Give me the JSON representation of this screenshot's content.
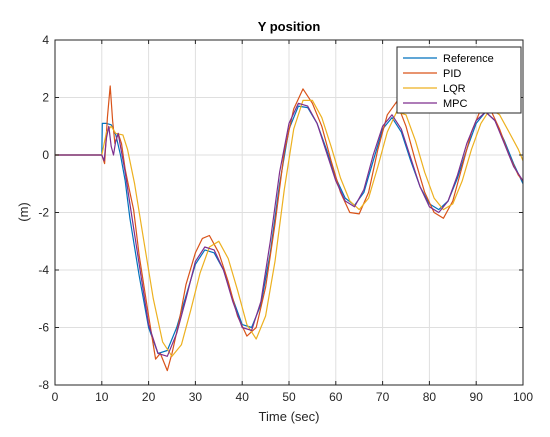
{
  "chart_data": {
    "type": "line",
    "title": "Y position",
    "xlabel": "Time (sec)",
    "ylabel": "(m)",
    "xlim": [
      0,
      100
    ],
    "ylim": [
      -8,
      4
    ],
    "xticks": [
      0,
      10,
      20,
      30,
      40,
      50,
      60,
      70,
      80,
      90,
      100
    ],
    "yticks": [
      -8,
      -6,
      -4,
      -2,
      0,
      2,
      4
    ],
    "x_tick_labels": [
      "0",
      "10",
      "20",
      "30",
      "40",
      "50",
      "60",
      "70",
      "80",
      "90",
      "100"
    ],
    "y_tick_labels": [
      "-8",
      "-6",
      "-4",
      "-2",
      "0",
      "2",
      "4"
    ],
    "grid": true,
    "legend_position": "top-right",
    "series": [
      {
        "name": "Reference",
        "color": "#0072BD",
        "points": [
          [
            0,
            0
          ],
          [
            10,
            0
          ],
          [
            10.1,
            1.1
          ],
          [
            11,
            1.1
          ],
          [
            12,
            1.05
          ],
          [
            13,
            0.7
          ],
          [
            14,
            0
          ],
          [
            15,
            -0.9
          ],
          [
            16,
            -2.2
          ],
          [
            18,
            -4.2
          ],
          [
            20,
            -6.0
          ],
          [
            22,
            -6.9
          ],
          [
            24,
            -6.8
          ],
          [
            26,
            -6.0
          ],
          [
            28,
            -4.9
          ],
          [
            30,
            -3.8
          ],
          [
            32,
            -3.3
          ],
          [
            34,
            -3.4
          ],
          [
            36,
            -4.0
          ],
          [
            38,
            -5.0
          ],
          [
            40,
            -5.9
          ],
          [
            42,
            -6.0
          ],
          [
            44,
            -5.2
          ],
          [
            46,
            -3.4
          ],
          [
            48,
            -1.0
          ],
          [
            50,
            0.9
          ],
          [
            52,
            1.7
          ],
          [
            54,
            1.65
          ],
          [
            56,
            1.1
          ],
          [
            58,
            0.2
          ],
          [
            60,
            -0.8
          ],
          [
            62,
            -1.5
          ],
          [
            64,
            -1.75
          ],
          [
            66,
            -1.3
          ],
          [
            68,
            -0.2
          ],
          [
            70,
            0.9
          ],
          [
            72,
            1.3
          ],
          [
            74,
            0.8
          ],
          [
            76,
            -0.2
          ],
          [
            78,
            -1.1
          ],
          [
            80,
            -1.7
          ],
          [
            82,
            -1.9
          ],
          [
            84,
            -1.6
          ],
          [
            86,
            -0.8
          ],
          [
            88,
            0.2
          ],
          [
            90,
            1.1
          ],
          [
            92,
            1.5
          ],
          [
            94,
            1.2
          ],
          [
            96,
            0.5
          ],
          [
            98,
            -0.3
          ],
          [
            100,
            -1.0
          ]
        ]
      },
      {
        "name": "PID",
        "color": "#D95319",
        "points": [
          [
            0,
            0
          ],
          [
            10,
            0
          ],
          [
            10.6,
            -0.3
          ],
          [
            11.2,
            1.3
          ],
          [
            11.8,
            2.4
          ],
          [
            12.3,
            1.2
          ],
          [
            12.8,
            0.4
          ],
          [
            13.5,
            0.75
          ],
          [
            14.2,
            0.4
          ],
          [
            15,
            -0.5
          ],
          [
            16,
            -1.3
          ],
          [
            16.8,
            -1.9
          ],
          [
            18,
            -3.5
          ],
          [
            20,
            -5.6
          ],
          [
            21.5,
            -7.1
          ],
          [
            22.5,
            -6.9
          ],
          [
            24,
            -7.5
          ],
          [
            25,
            -6.9
          ],
          [
            26.5,
            -5.8
          ],
          [
            28,
            -4.5
          ],
          [
            30,
            -3.4
          ],
          [
            31.5,
            -2.9
          ],
          [
            33,
            -2.8
          ],
          [
            35,
            -3.4
          ],
          [
            37,
            -4.4
          ],
          [
            39,
            -5.6
          ],
          [
            41,
            -6.3
          ],
          [
            43,
            -6.0
          ],
          [
            45,
            -4.6
          ],
          [
            47,
            -2.4
          ],
          [
            49,
            0.1
          ],
          [
            51,
            1.6
          ],
          [
            53,
            2.3
          ],
          [
            55,
            1.8
          ],
          [
            57,
            1.0
          ],
          [
            59,
            -0.2
          ],
          [
            61,
            -1.3
          ],
          [
            63,
            -2.0
          ],
          [
            65,
            -2.05
          ],
          [
            67,
            -1.3
          ],
          [
            69,
            0.2
          ],
          [
            71,
            1.4
          ],
          [
            73,
            1.85
          ],
          [
            75,
            1.0
          ],
          [
            77,
            -0.2
          ],
          [
            79,
            -1.3
          ],
          [
            81,
            -2.0
          ],
          [
            83,
            -2.2
          ],
          [
            85,
            -1.6
          ],
          [
            87,
            -0.4
          ],
          [
            89,
            0.8
          ],
          [
            91,
            1.6
          ],
          [
            93,
            1.6
          ],
          [
            95,
            0.9
          ],
          [
            97,
            0.0
          ],
          [
            99,
            -0.7
          ],
          [
            100,
            -0.9
          ]
        ]
      },
      {
        "name": "LQR",
        "color": "#EDB120",
        "points": [
          [
            0,
            0
          ],
          [
            10,
            0
          ],
          [
            11,
            0.8
          ],
          [
            12,
            1.0
          ],
          [
            13,
            0.75
          ],
          [
            14.5,
            0.7
          ],
          [
            15.5,
            0.2
          ],
          [
            17,
            -1.0
          ],
          [
            19,
            -3.0
          ],
          [
            21,
            -5.0
          ],
          [
            23,
            -6.5
          ],
          [
            25,
            -7.0
          ],
          [
            27,
            -6.6
          ],
          [
            29,
            -5.4
          ],
          [
            31,
            -4.1
          ],
          [
            33,
            -3.2
          ],
          [
            35,
            -3.0
          ],
          [
            37,
            -3.6
          ],
          [
            39,
            -4.7
          ],
          [
            41,
            -5.9
          ],
          [
            43,
            -6.4
          ],
          [
            45,
            -5.6
          ],
          [
            47,
            -3.7
          ],
          [
            49,
            -1.2
          ],
          [
            51,
            0.9
          ],
          [
            53,
            1.9
          ],
          [
            55,
            1.9
          ],
          [
            57,
            1.3
          ],
          [
            59,
            0.3
          ],
          [
            61,
            -0.8
          ],
          [
            63,
            -1.6
          ],
          [
            65,
            -1.9
          ],
          [
            67,
            -1.5
          ],
          [
            69,
            -0.4
          ],
          [
            71,
            0.8
          ],
          [
            73,
            1.5
          ],
          [
            75,
            1.4
          ],
          [
            77,
            0.5
          ],
          [
            79,
            -0.6
          ],
          [
            81,
            -1.5
          ],
          [
            83,
            -1.9
          ],
          [
            85,
            -1.7
          ],
          [
            87,
            -0.9
          ],
          [
            89,
            0.2
          ],
          [
            91,
            1.1
          ],
          [
            93,
            1.6
          ],
          [
            95,
            1.4
          ],
          [
            97,
            0.8
          ],
          [
            99,
            0.2
          ],
          [
            100,
            -0.2
          ]
        ]
      },
      {
        "name": "MPC",
        "color": "#7E2F8E",
        "points": [
          [
            0,
            0
          ],
          [
            10,
            0
          ],
          [
            10.5,
            -0.2
          ],
          [
            11,
            0.6
          ],
          [
            11.5,
            1.0
          ],
          [
            12,
            0.3
          ],
          [
            12.5,
            0.0
          ],
          [
            13,
            0.5
          ],
          [
            13.5,
            0.75
          ],
          [
            14,
            0.3
          ],
          [
            15,
            -0.6
          ],
          [
            16,
            -1.7
          ],
          [
            18,
            -3.8
          ],
          [
            20,
            -5.9
          ],
          [
            22,
            -6.9
          ],
          [
            24,
            -7.0
          ],
          [
            26,
            -6.2
          ],
          [
            28,
            -5.0
          ],
          [
            30,
            -3.7
          ],
          [
            32,
            -3.2
          ],
          [
            34,
            -3.3
          ],
          [
            36,
            -4.0
          ],
          [
            38,
            -5.1
          ],
          [
            40,
            -6.0
          ],
          [
            42,
            -6.1
          ],
          [
            44,
            -5.1
          ],
          [
            46,
            -3.0
          ],
          [
            48,
            -0.6
          ],
          [
            50,
            1.1
          ],
          [
            52,
            1.8
          ],
          [
            54,
            1.7
          ],
          [
            56,
            1.1
          ],
          [
            58,
            0.1
          ],
          [
            60,
            -0.9
          ],
          [
            62,
            -1.6
          ],
          [
            64,
            -1.8
          ],
          [
            66,
            -1.2
          ],
          [
            68,
            0.0
          ],
          [
            70,
            1.0
          ],
          [
            72,
            1.4
          ],
          [
            74,
            0.9
          ],
          [
            76,
            -0.1
          ],
          [
            78,
            -1.1
          ],
          [
            80,
            -1.8
          ],
          [
            82,
            -2.0
          ],
          [
            84,
            -1.6
          ],
          [
            86,
            -0.7
          ],
          [
            88,
            0.4
          ],
          [
            90,
            1.2
          ],
          [
            92,
            1.5
          ],
          [
            94,
            1.2
          ],
          [
            96,
            0.4
          ],
          [
            98,
            -0.4
          ],
          [
            100,
            -0.9
          ]
        ]
      }
    ]
  }
}
